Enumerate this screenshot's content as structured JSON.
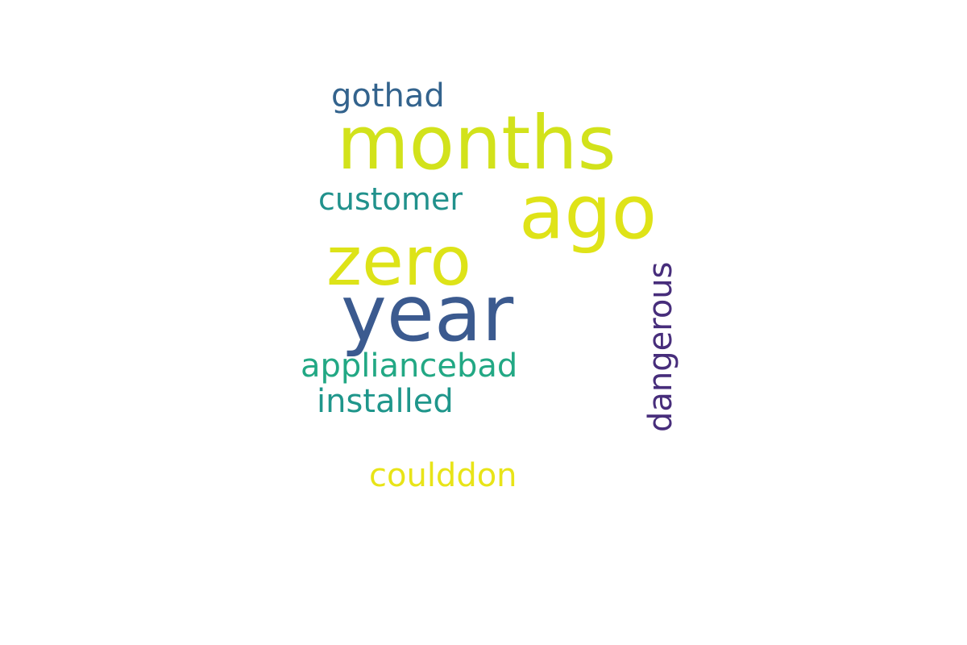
{
  "word_cloud": {
    "words": [
      {
        "text": "months",
        "color": "#d2e21b"
      },
      {
        "text": "ago",
        "color": "#dfe318"
      },
      {
        "text": "zero",
        "color": "#dde318"
      },
      {
        "text": "year",
        "color": "#3b5a8f"
      },
      {
        "text": "gothad",
        "color": "#33638d"
      },
      {
        "text": "customer",
        "color": "#21918c"
      },
      {
        "text": "appliancebad",
        "color": "#22a884"
      },
      {
        "text": "installed",
        "color": "#1f968b"
      },
      {
        "text": "coulddon",
        "color": "#e8e418"
      },
      {
        "text": "dangerous",
        "color": "#472d7b",
        "orientation": "vertical"
      }
    ]
  }
}
